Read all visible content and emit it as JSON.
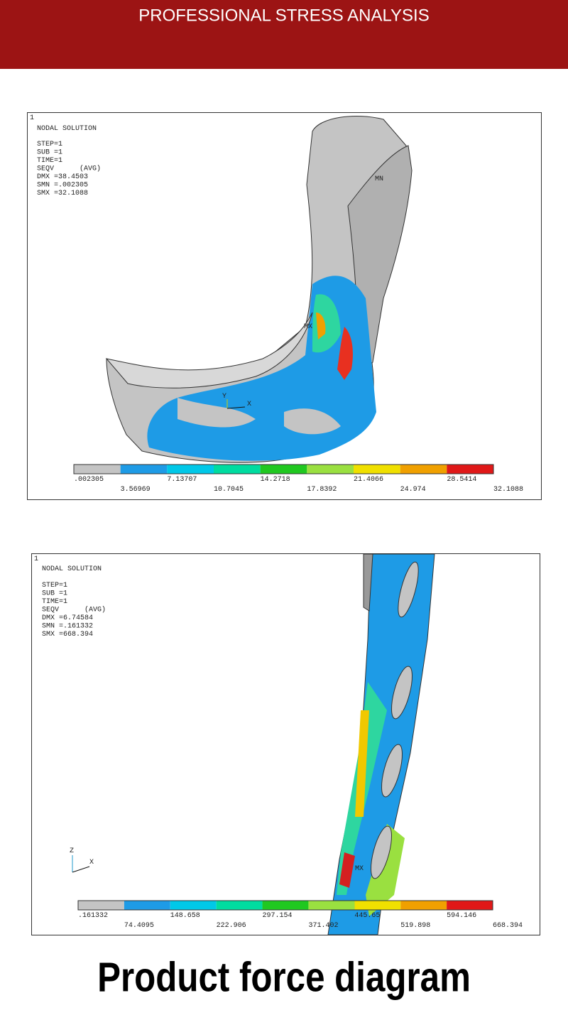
{
  "header": {
    "title": "PROFESSIONAL STRESS ANALYSIS"
  },
  "panels": [
    {
      "corner_label": "1",
      "heading": "NODAL SOLUTION",
      "info": [
        "STEP=1",
        "SUB =1",
        "TIME=1",
        "SEQV      (AVG)",
        "DMX =38.4503",
        "SMN =.002305",
        "SMX =32.1088"
      ],
      "markers": [
        "MN",
        "MX"
      ],
      "axis_labels": [
        "Y",
        "X"
      ],
      "legend_upper": [
        ".002305",
        "7.13707",
        "14.2718",
        "21.4066",
        "28.5414"
      ],
      "legend_lower": [
        "3.56969",
        "10.7045",
        "17.8392",
        "24.974",
        "32.1088"
      ]
    },
    {
      "corner_label": "1",
      "heading": "NODAL SOLUTION",
      "info": [
        "STEP=1",
        "SUB =1",
        "TIME=1",
        "SEQV      (AVG)",
        "DMX =6.74584",
        "SMN =.161332",
        "SMX =668.394"
      ],
      "markers": [
        "MX"
      ],
      "axis_labels": [
        "Z",
        "X"
      ],
      "legend_upper": [
        ".161332",
        "148.658",
        "297.154",
        "445.65",
        "594.146"
      ],
      "legend_lower": [
        "74.4095",
        "222.906",
        "371.402",
        "519.898",
        "668.394"
      ]
    }
  ],
  "footer": {
    "title": "Product force diagram"
  }
}
